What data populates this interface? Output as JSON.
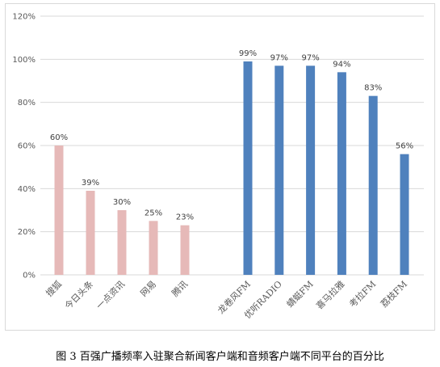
{
  "caption": "图 3  百强广播频率入驻聚合新闻客户端和音频客户端不同平台的百分比",
  "chart_data": {
    "type": "bar",
    "title": "",
    "xlabel": "",
    "ylabel": "",
    "ylim": [
      0,
      120
    ],
    "yticks": [
      "0%",
      "20%",
      "40%",
      "60%",
      "80%",
      "100%",
      "120%"
    ],
    "grid": true,
    "legend": "none",
    "categories": [
      "搜狐",
      "今日头条",
      "一点资讯",
      "网易",
      "腾讯",
      "龙卷风FM",
      "优听RADIO",
      "蜻蜓FM",
      "喜马拉雅",
      "考拉FM",
      "荔枝FM"
    ],
    "values": [
      60,
      39,
      30,
      25,
      23,
      99,
      97,
      97,
      94,
      83,
      56
    ],
    "data_labels": [
      "60%",
      "39%",
      "30%",
      "25%",
      "23%",
      "99%",
      "97%",
      "97%",
      "94%",
      "83%",
      "56%"
    ],
    "groups": [
      {
        "indices": [
          0,
          1,
          2,
          3,
          4
        ],
        "color": "#e6b9b8"
      },
      {
        "indices": [
          5,
          6,
          7,
          8,
          9,
          10
        ],
        "color": "#4f81bd"
      }
    ]
  }
}
